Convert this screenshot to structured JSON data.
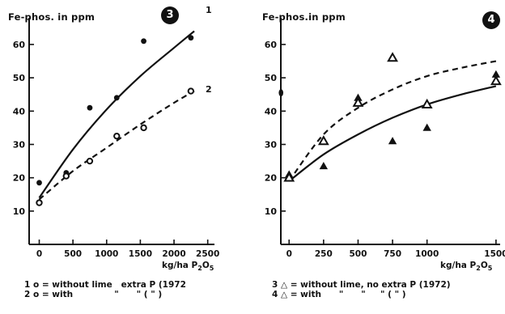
{
  "chart_data": [
    {
      "type": "scatter",
      "panel_label": "3",
      "ylabel": "Fe-phos. in ppm",
      "xlabel": "kg/ha P2O5",
      "xticks": [
        0,
        500,
        1000,
        1500,
        2000,
        2500
      ],
      "yticks": [
        10,
        20,
        30,
        40,
        50,
        60
      ],
      "xlim": [
        -150,
        2600
      ],
      "ylim": [
        0,
        68
      ],
      "series": [
        {
          "name": "1",
          "marker": "filled-circle",
          "line": "solid",
          "points": [
            [
              0,
              18.5
            ],
            [
              400,
              21.5
            ],
            [
              750,
              41
            ],
            [
              1150,
              44
            ],
            [
              1550,
              61
            ],
            [
              2250,
              62
            ]
          ],
          "curve": [
            [
              0,
              14
            ],
            [
              500,
              28.5
            ],
            [
              1000,
              40.5
            ],
            [
              1500,
              50.5
            ],
            [
              2000,
              59
            ],
            [
              2300,
              64
            ]
          ]
        },
        {
          "name": "2",
          "marker": "open-circle",
          "line": "dashed",
          "points": [
            [
              0,
              12.5
            ],
            [
              400,
              20.5
            ],
            [
              750,
              25
            ],
            [
              1150,
              32.5
            ],
            [
              1550,
              35
            ],
            [
              2250,
              46
            ]
          ],
          "curve": [
            [
              0,
              13.5
            ],
            [
              500,
              22
            ],
            [
              1000,
              29
            ],
            [
              1500,
              36
            ],
            [
              2000,
              42.5
            ],
            [
              2300,
              46
            ]
          ]
        }
      ],
      "curve_labels": [
        "1",
        "2"
      ],
      "legend": [
        "1 o = without lime   extra P (1972",
        "2 o = with              \"      \" ( \" )"
      ]
    },
    {
      "type": "scatter",
      "panel_label": "4",
      "ylabel": "Fe-phos.in ppm",
      "xlabel": "kg/ha P2O5",
      "xticks": [
        0,
        250,
        500,
        750,
        1000,
        1500
      ],
      "yticks": [
        10,
        20,
        30,
        40,
        50,
        60
      ],
      "xlim": [
        -60,
        1530
      ],
      "ylim": [
        0,
        68
      ],
      "series": [
        {
          "name": "3",
          "marker": "filled-triangle",
          "line": "solid",
          "points": [
            [
              0,
              21
            ],
            [
              250,
              23.5
            ],
            [
              500,
              44
            ],
            [
              750,
              31
            ],
            [
              1000,
              35
            ],
            [
              1500,
              51
            ]
          ],
          "curve": [
            [
              0,
              19
            ],
            [
              250,
              27
            ],
            [
              500,
              33
            ],
            [
              750,
              38
            ],
            [
              1000,
              42
            ],
            [
              1250,
              45
            ],
            [
              1500,
              47.5
            ]
          ]
        },
        {
          "name": "4",
          "marker": "open-triangle",
          "line": "dashed",
          "points": [
            [
              0,
              20
            ],
            [
              250,
              31
            ],
            [
              500,
              42.5
            ],
            [
              750,
              56
            ],
            [
              1000,
              42
            ],
            [
              1500,
              49
            ]
          ],
          "curve": [
            [
              0,
              19
            ],
            [
              250,
              33
            ],
            [
              500,
              41
            ],
            [
              750,
              46.5
            ],
            [
              1000,
              50.5
            ],
            [
              1250,
              53
            ],
            [
              1500,
              55
            ]
          ]
        }
      ],
      "outlier": [
        0,
        45.5
      ],
      "legend": [
        "3 △ = without lime, no extra P (1972)",
        "4 △ = with      \"      \"     \" ( \" )"
      ]
    }
  ]
}
